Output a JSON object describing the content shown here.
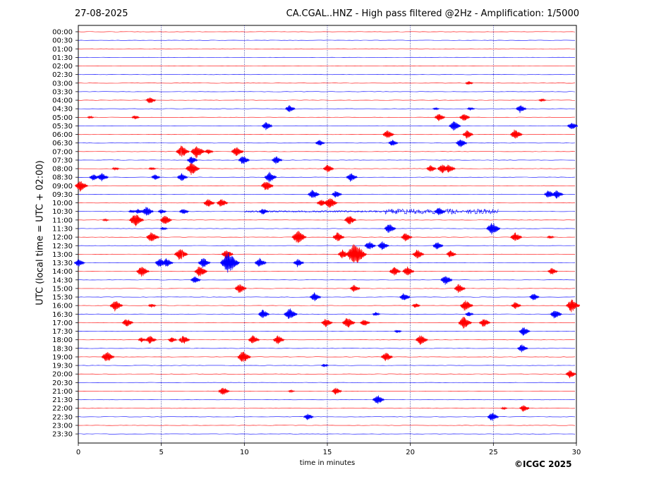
{
  "header": {
    "date": "27-08-2025",
    "title": "CA.CGAL..HNZ - High pass filtered @2Hz - Amplification: 1/5000"
  },
  "footer": {
    "copyright": "©ICGC 2025"
  },
  "chart_data": {
    "type": "line",
    "title": "CA.CGAL..HNZ - High pass filtered @2Hz - Amplification: 1/5000",
    "xlabel": "time in minutes",
    "ylabel": "UTC (local time = UTC + 02:00)",
    "xlim": [
      0,
      30
    ],
    "x_ticks": [
      0,
      5,
      10,
      15,
      20,
      25,
      30
    ],
    "x_grid": [
      5,
      10,
      15,
      20,
      25
    ],
    "grid_style": "dotted vertical lines",
    "trace_colors": {
      "full_hour": "#ff0000",
      "half_hour": "#0000ff"
    },
    "rows": [
      "00:00",
      "00:30",
      "01:00",
      "01:30",
      "02:00",
      "02:30",
      "03:00",
      "03:30",
      "04:00",
      "04:30",
      "05:00",
      "05:30",
      "06:00",
      "06:30",
      "07:00",
      "07:30",
      "08:00",
      "08:30",
      "09:00",
      "09:30",
      "10:00",
      "10:30",
      "11:00",
      "11:30",
      "12:00",
      "12:30",
      "13:00",
      "13:30",
      "14:00",
      "14:30",
      "15:00",
      "15:30",
      "16:00",
      "16:30",
      "17:00",
      "17:30",
      "18:00",
      "18:30",
      "19:00",
      "19:30",
      "20:00",
      "20:30",
      "21:00",
      "21:30",
      "22:00",
      "22:30",
      "23:00",
      "23:30"
    ],
    "events": [
      {
        "row": "03:00",
        "t": 23.5,
        "a": 0.25
      },
      {
        "row": "04:00",
        "t": 4.3,
        "a": 0.45
      },
      {
        "row": "04:00",
        "t": 27.9,
        "a": 0.2
      },
      {
        "row": "04:30",
        "t": 12.7,
        "a": 0.45
      },
      {
        "row": "04:30",
        "t": 21.5,
        "a": 0.15
      },
      {
        "row": "04:30",
        "t": 23.6,
        "a": 0.2
      },
      {
        "row": "04:30",
        "t": 26.6,
        "a": 0.5
      },
      {
        "row": "05:00",
        "t": 0.7,
        "a": 0.15
      },
      {
        "row": "05:00",
        "t": 3.4,
        "a": 0.25
      },
      {
        "row": "05:00",
        "t": 21.7,
        "a": 0.5
      },
      {
        "row": "05:00",
        "t": 23.2,
        "a": 0.5
      },
      {
        "row": "05:30",
        "t": 11.3,
        "a": 0.5
      },
      {
        "row": "05:30",
        "t": 22.6,
        "a": 0.6
      },
      {
        "row": "05:30",
        "t": 29.7,
        "a": 0.5
      },
      {
        "row": "06:00",
        "t": 18.6,
        "a": 0.55
      },
      {
        "row": "06:00",
        "t": 23.4,
        "a": 0.5
      },
      {
        "row": "06:00",
        "t": 26.3,
        "a": 0.65
      },
      {
        "row": "06:30",
        "t": 14.5,
        "a": 0.4
      },
      {
        "row": "06:30",
        "t": 18.9,
        "a": 0.4
      },
      {
        "row": "06:30",
        "t": 23.0,
        "a": 0.55
      },
      {
        "row": "07:00",
        "t": 6.2,
        "a": 0.75
      },
      {
        "row": "07:00",
        "t": 7.1,
        "a": 0.8
      },
      {
        "row": "07:00",
        "t": 7.8,
        "a": 0.35
      },
      {
        "row": "07:00",
        "t": 9.5,
        "a": 0.65
      },
      {
        "row": "07:30",
        "t": 6.8,
        "a": 0.5
      },
      {
        "row": "07:30",
        "t": 9.9,
        "a": 0.55
      },
      {
        "row": "07:30",
        "t": 11.9,
        "a": 0.5
      },
      {
        "row": "08:00",
        "t": 2.2,
        "a": 0.2
      },
      {
        "row": "08:00",
        "t": 4.4,
        "a": 0.2
      },
      {
        "row": "08:00",
        "t": 6.8,
        "a": 0.8
      },
      {
        "row": "08:00",
        "t": 15.0,
        "a": 0.5
      },
      {
        "row": "08:00",
        "t": 21.2,
        "a": 0.45
      },
      {
        "row": "08:00",
        "t": 21.9,
        "a": 0.6
      },
      {
        "row": "08:00",
        "t": 22.3,
        "a": 0.55
      },
      {
        "row": "08:30",
        "t": 0.9,
        "a": 0.45
      },
      {
        "row": "08:30",
        "t": 1.4,
        "a": 0.55
      },
      {
        "row": "08:30",
        "t": 4.6,
        "a": 0.35
      },
      {
        "row": "08:30",
        "t": 6.2,
        "a": 0.5
      },
      {
        "row": "08:30",
        "t": 11.5,
        "a": 0.65
      },
      {
        "row": "08:30",
        "t": 16.4,
        "a": 0.55
      },
      {
        "row": "09:00",
        "t": 0.1,
        "a": 0.7
      },
      {
        "row": "09:00",
        "t": 11.3,
        "a": 0.65
      },
      {
        "row": "09:30",
        "t": 14.1,
        "a": 0.6
      },
      {
        "row": "09:30",
        "t": 15.5,
        "a": 0.45
      },
      {
        "row": "09:30",
        "t": 28.3,
        "a": 0.5
      },
      {
        "row": "09:30",
        "t": 28.8,
        "a": 0.55
      },
      {
        "row": "10:00",
        "t": 7.8,
        "a": 0.55
      },
      {
        "row": "10:00",
        "t": 8.6,
        "a": 0.55
      },
      {
        "row": "10:00",
        "t": 14.6,
        "a": 0.45
      },
      {
        "row": "10:00",
        "t": 15.1,
        "a": 0.75
      },
      {
        "row": "10:30",
        "t": 3.2,
        "a": 0.2
      },
      {
        "row": "10:30",
        "t": 3.6,
        "a": 0.35
      },
      {
        "row": "10:30",
        "t": 4.1,
        "a": 0.6
      },
      {
        "row": "10:30",
        "t": 5.0,
        "a": 0.3
      },
      {
        "row": "10:30",
        "t": 6.3,
        "a": 0.4
      },
      {
        "row": "10:30",
        "t": 11.1,
        "a": 0.4
      },
      {
        "row": "10:30",
        "t": 21.7,
        "a": 0.55
      },
      {
        "row": "11:00",
        "t": 1.6,
        "a": 0.15
      },
      {
        "row": "11:00",
        "t": 3.4,
        "a": 0.85
      },
      {
        "row": "11:00",
        "t": 5.2,
        "a": 0.6
      },
      {
        "row": "11:00",
        "t": 16.3,
        "a": 0.6
      },
      {
        "row": "11:30",
        "t": 5.1,
        "a": 0.2
      },
      {
        "row": "11:30",
        "t": 18.7,
        "a": 0.6
      },
      {
        "row": "11:30",
        "t": 24.9,
        "a": 0.8
      },
      {
        "row": "12:00",
        "t": 4.4,
        "a": 0.7
      },
      {
        "row": "12:00",
        "t": 13.2,
        "a": 0.85
      },
      {
        "row": "12:00",
        "t": 15.6,
        "a": 0.6
      },
      {
        "row": "12:00",
        "t": 19.7,
        "a": 0.55
      },
      {
        "row": "12:00",
        "t": 26.3,
        "a": 0.6
      },
      {
        "row": "12:00",
        "t": 28.4,
        "a": 0.2
      },
      {
        "row": "12:30",
        "t": 17.5,
        "a": 0.55
      },
      {
        "row": "12:30",
        "t": 18.3,
        "a": 0.55
      },
      {
        "row": "12:30",
        "t": 21.6,
        "a": 0.5
      },
      {
        "row": "13:00",
        "t": 6.1,
        "a": 0.75
      },
      {
        "row": "13:00",
        "t": 8.9,
        "a": 0.6
      },
      {
        "row": "13:00",
        "t": 15.9,
        "a": 0.55
      },
      {
        "row": "13:00",
        "t": 16.6,
        "a": 1.4
      },
      {
        "row": "13:00",
        "t": 20.4,
        "a": 0.6
      },
      {
        "row": "13:00",
        "t": 22.4,
        "a": 0.45
      },
      {
        "row": "13:30",
        "t": 0.0,
        "a": 0.5
      },
      {
        "row": "13:30",
        "t": 4.9,
        "a": 0.6
      },
      {
        "row": "13:30",
        "t": 5.3,
        "a": 0.55
      },
      {
        "row": "13:30",
        "t": 7.5,
        "a": 0.65
      },
      {
        "row": "13:30",
        "t": 9.0,
        "a": 1.3
      },
      {
        "row": "13:30",
        "t": 10.9,
        "a": 0.6
      },
      {
        "row": "13:30",
        "t": 13.2,
        "a": 0.5
      },
      {
        "row": "14:00",
        "t": 3.8,
        "a": 0.7
      },
      {
        "row": "14:00",
        "t": 7.3,
        "a": 0.7
      },
      {
        "row": "14:00",
        "t": 19.0,
        "a": 0.55
      },
      {
        "row": "14:00",
        "t": 19.8,
        "a": 0.6
      },
      {
        "row": "14:00",
        "t": 28.5,
        "a": 0.45
      },
      {
        "row": "14:30",
        "t": 7.0,
        "a": 0.45
      },
      {
        "row": "14:30",
        "t": 22.1,
        "a": 0.6
      },
      {
        "row": "15:00",
        "t": 9.7,
        "a": 0.6
      },
      {
        "row": "15:00",
        "t": 16.6,
        "a": 0.45
      },
      {
        "row": "15:00",
        "t": 22.9,
        "a": 0.55
      },
      {
        "row": "15:30",
        "t": 14.2,
        "a": 0.55
      },
      {
        "row": "15:30",
        "t": 19.6,
        "a": 0.5
      },
      {
        "row": "15:30",
        "t": 27.4,
        "a": 0.45
      },
      {
        "row": "16:00",
        "t": 2.2,
        "a": 0.7
      },
      {
        "row": "16:00",
        "t": 4.4,
        "a": 0.25
      },
      {
        "row": "16:00",
        "t": 20.3,
        "a": 0.3
      },
      {
        "row": "16:00",
        "t": 23.3,
        "a": 0.7
      },
      {
        "row": "16:00",
        "t": 26.3,
        "a": 0.45
      },
      {
        "row": "16:00",
        "t": 29.7,
        "a": 0.8
      },
      {
        "row": "16:30",
        "t": 11.1,
        "a": 0.55
      },
      {
        "row": "16:30",
        "t": 12.7,
        "a": 0.75
      },
      {
        "row": "16:30",
        "t": 17.9,
        "a": 0.25
      },
      {
        "row": "16:30",
        "t": 23.5,
        "a": 0.3
      },
      {
        "row": "16:30",
        "t": 28.7,
        "a": 0.6
      },
      {
        "row": "17:00",
        "t": 2.9,
        "a": 0.55
      },
      {
        "row": "17:00",
        "t": 14.9,
        "a": 0.55
      },
      {
        "row": "17:00",
        "t": 16.2,
        "a": 0.7
      },
      {
        "row": "17:00",
        "t": 17.2,
        "a": 0.45
      },
      {
        "row": "17:00",
        "t": 23.2,
        "a": 0.75
      },
      {
        "row": "17:00",
        "t": 24.4,
        "a": 0.55
      },
      {
        "row": "17:30",
        "t": 19.2,
        "a": 0.2
      },
      {
        "row": "17:30",
        "t": 26.8,
        "a": 0.55
      },
      {
        "row": "18:00",
        "t": 3.8,
        "a": 0.3
      },
      {
        "row": "18:00",
        "t": 4.3,
        "a": 0.55
      },
      {
        "row": "18:00",
        "t": 5.6,
        "a": 0.35
      },
      {
        "row": "18:00",
        "t": 6.3,
        "a": 0.55
      },
      {
        "row": "18:00",
        "t": 10.5,
        "a": 0.55
      },
      {
        "row": "18:00",
        "t": 12.0,
        "a": 0.55
      },
      {
        "row": "18:00",
        "t": 20.6,
        "a": 0.65
      },
      {
        "row": "18:30",
        "t": 26.7,
        "a": 0.5
      },
      {
        "row": "19:00",
        "t": 1.7,
        "a": 0.7
      },
      {
        "row": "19:00",
        "t": 9.9,
        "a": 0.75
      },
      {
        "row": "19:00",
        "t": 18.5,
        "a": 0.6
      },
      {
        "row": "19:30",
        "t": 14.8,
        "a": 0.2
      },
      {
        "row": "20:00",
        "t": 29.6,
        "a": 0.5
      },
      {
        "row": "21:00",
        "t": 8.7,
        "a": 0.55
      },
      {
        "row": "21:00",
        "t": 12.8,
        "a": 0.15
      },
      {
        "row": "21:00",
        "t": 15.5,
        "a": 0.45
      },
      {
        "row": "21:30",
        "t": 18.0,
        "a": 0.6
      },
      {
        "row": "22:00",
        "t": 25.6,
        "a": 0.15
      },
      {
        "row": "22:00",
        "t": 26.8,
        "a": 0.45
      },
      {
        "row": "22:30",
        "t": 13.8,
        "a": 0.45
      },
      {
        "row": "22:30",
        "t": 24.9,
        "a": 0.55
      }
    ],
    "noise_bands": [
      {
        "row": "10:30",
        "from": 18.5,
        "to": 25.3,
        "a": 0.3
      },
      {
        "row": "10:30",
        "from": 10.0,
        "to": 18.5,
        "a": 0.1
      }
    ]
  }
}
